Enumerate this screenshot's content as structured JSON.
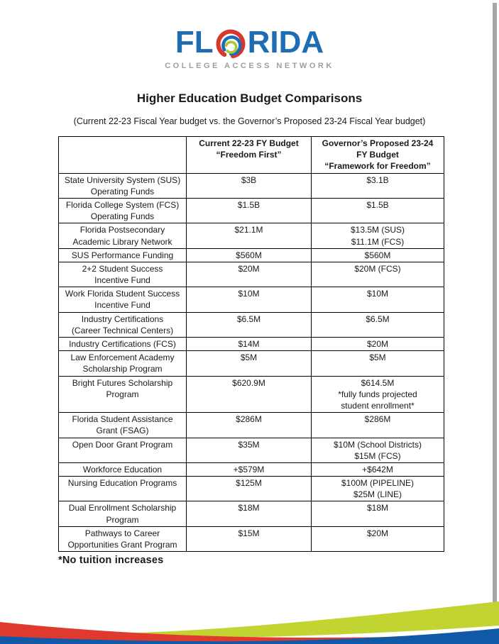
{
  "logo": {
    "word_start": "FL",
    "word_end": "RIDA",
    "o_icon": "tri-color-swoosh-o",
    "tagline": "COLLEGE ACCESS NETWORK"
  },
  "title": "Higher Education Budget Comparisons",
  "subtitle": "(Current 22-23 Fiscal Year budget vs. the Governor’s Proposed 23-24 Fiscal Year budget)",
  "table": {
    "columns": [
      "",
      "Current 22-23 FY Budget\n“Freedom First”",
      "Governor’s Proposed 23-24\nFY Budget\n“Framework for Freedom”"
    ],
    "rows": [
      {
        "program": "State University System (SUS)\nOperating Funds",
        "current": "$3B",
        "proposed": "$3.1B"
      },
      {
        "program": "Florida College System (FCS)\nOperating Funds",
        "current": "$1.5B",
        "proposed": "$1.5B"
      },
      {
        "program": "Florida Postsecondary\nAcademic Library Network",
        "current": "$21.1M",
        "proposed": "$13.5M (SUS)\n$11.1M (FCS)"
      },
      {
        "program": "SUS Performance Funding",
        "current": "$560M",
        "proposed": "$560M"
      },
      {
        "program": "2+2 Student Success\nIncentive Fund",
        "current": "$20M",
        "proposed": "$20M (FCS)"
      },
      {
        "program": "Work Florida Student Success\nIncentive Fund",
        "current": "$10M",
        "proposed": "$10M"
      },
      {
        "program": "Industry Certifications\n(Career Technical Centers)",
        "current": "$6.5M",
        "proposed": "$6.5M"
      },
      {
        "program": "Industry Certifications (FCS)",
        "current": "$14M",
        "proposed": "$20M"
      },
      {
        "program": "Law Enforcement Academy\nScholarship Program",
        "current": "$5M",
        "proposed": "$5M"
      },
      {
        "program": "Bright Futures Scholarship\nProgram",
        "current": "$620.9M",
        "proposed": "$614.5M\n*fully funds projected\nstudent enrollment*"
      },
      {
        "program": "Florida Student Assistance\nGrant (FSAG)",
        "current": "$286M",
        "proposed": "$286M"
      },
      {
        "program": "Open Door Grant Program",
        "current": "$35M",
        "proposed": "$10M (School Districts)\n$15M (FCS)"
      },
      {
        "program": "Workforce Education",
        "current": "+$579M",
        "proposed": "+$642M"
      },
      {
        "program": "Nursing Education Programs",
        "current": "$125M",
        "proposed": "$100M (PIPELINE)\n$25M (LINE)"
      },
      {
        "program": "Dual Enrollment Scholarship\nProgram",
        "current": "$18M",
        "proposed": "$18M"
      },
      {
        "program": "Pathways to Career\nOpportunities Grant Program",
        "current": "$15M",
        "proposed": "$20M"
      }
    ]
  },
  "footnote": "*No tuition increases",
  "colors": {
    "logo_blue": "#1e6db4",
    "tagline_gray": "#9aa0a3",
    "wave_green": "#c1d431",
    "wave_red": "#e03a2f",
    "wave_blue": "#1059a6",
    "swoosh_red": "#d8372d",
    "swoosh_blue": "#1e6db4",
    "swoosh_green": "#a9c92f",
    "page_edge_gray": "#a6a6a6",
    "text_black": "#1a1a1a"
  }
}
